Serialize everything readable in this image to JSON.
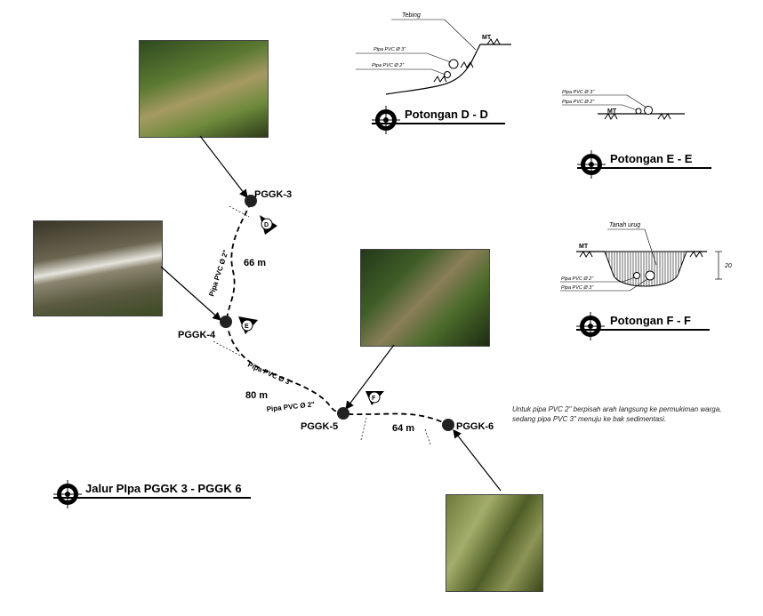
{
  "main_title": "Jalur PIpa PGGK 3 - PGGK 6",
  "stations": {
    "pggk3": "PGGK-3",
    "pggk4": "PGGK-4",
    "pggk5": "PGGK-5",
    "pggk6": "PGGK-6"
  },
  "distances": {
    "d3_4": "66 m",
    "d4_5": "80 m",
    "d5_6": "64 m"
  },
  "pipe_labels": {
    "seg1": "Pipa PVC Ø 2\"",
    "seg2_top": "Pipa PVC Ø 3\"",
    "seg2_bottom": "Pipa PVC Ø 2\""
  },
  "section_markers": {
    "d": "D",
    "e": "E",
    "f": "F"
  },
  "section_dd": {
    "title": "Potongan D - D",
    "tebing": "Tebing",
    "mt": "MT",
    "pipe3": "Pipa PVC Ø 3\"",
    "pipe2": "Pipa PVC Ø 2\""
  },
  "section_ee": {
    "title": "Potongan E - E",
    "mt": "MT",
    "pipe3": "Pipa PVC Ø 3\"",
    "pipe2": "Pipa PVC Ø 2\""
  },
  "section_ff": {
    "title": "Potongan F - F",
    "tanah": "Tanah urug",
    "mt": "MT",
    "depth": "20",
    "pipe2": "Pipa PVC Ø 2\"",
    "pipe3": "Pipa PVC Ø 3\""
  },
  "note": {
    "line1": "Untuk pipa PVC 2\" berpisah arah langsung ke permukiman warga,",
    "line2": "sedang pipa PVC 3\" menuju ke bak sedimentasi."
  }
}
